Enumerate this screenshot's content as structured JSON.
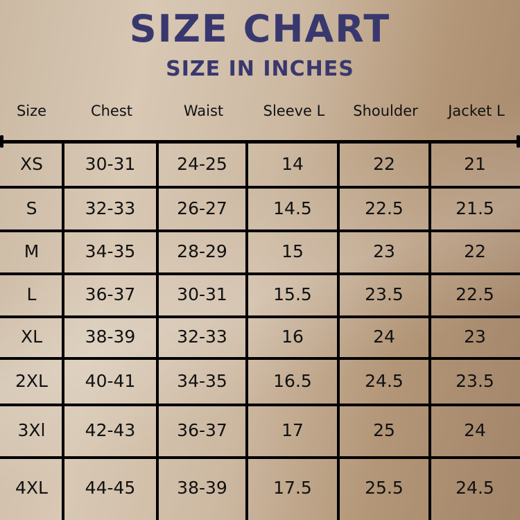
{
  "title": "SIZE CHART",
  "subtitle": "SIZE IN INCHES",
  "headers": [
    "Size",
    "Chest",
    "Waist",
    "Sleeve L",
    "Shoulder",
    "Jacket L"
  ],
  "rows": [
    [
      "XS",
      "30-31",
      "24-25",
      "14",
      "22",
      "21"
    ],
    [
      "S",
      "32-33",
      "26-27",
      "14.5",
      "22.5",
      "21.5"
    ],
    [
      "M",
      "34-35",
      "28-29",
      "15",
      "23",
      "22"
    ],
    [
      "L",
      "36-37",
      "30-31",
      "15.5",
      "23.5",
      "22.5"
    ],
    [
      "XL",
      "38-39",
      "32-33",
      "16",
      "24",
      "23"
    ],
    [
      "2XL",
      "40-41",
      "34-35",
      "16.5",
      "24.5",
      "23.5"
    ],
    [
      "3Xl",
      "42-43",
      "36-37",
      "17",
      "25",
      "24"
    ],
    [
      "4XL",
      "44-45",
      "38-39",
      "17.5",
      "25.5",
      "24.5"
    ]
  ],
  "colors": {
    "title": "#39386e",
    "text": "#111111",
    "grid": "#000000"
  }
}
